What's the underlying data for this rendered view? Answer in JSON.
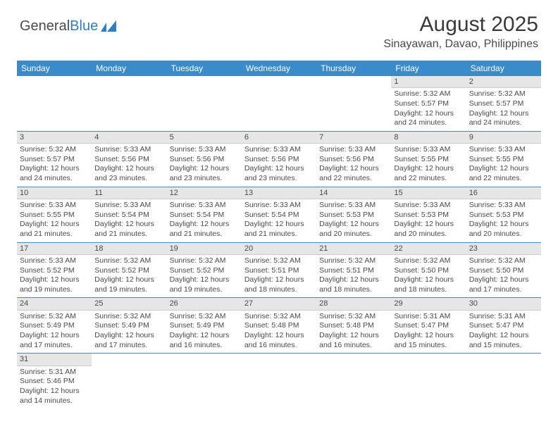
{
  "logo": {
    "text1": "General",
    "text2": "Blue"
  },
  "title": "August 2025",
  "subtitle": "Sinayawan, Davao, Philippines",
  "colors": {
    "header_bg": "#3a8bc9",
    "header_fg": "#ffffff",
    "daynum_bg": "#e6e6e6",
    "rule": "#3a8bc9"
  },
  "weekdays": [
    "Sunday",
    "Monday",
    "Tuesday",
    "Wednesday",
    "Thursday",
    "Friday",
    "Saturday"
  ],
  "weeks": [
    [
      null,
      null,
      null,
      null,
      null,
      {
        "n": "1",
        "sr": "Sunrise: 5:32 AM",
        "ss": "Sunset: 5:57 PM",
        "d1": "Daylight: 12 hours",
        "d2": "and 24 minutes."
      },
      {
        "n": "2",
        "sr": "Sunrise: 5:32 AM",
        "ss": "Sunset: 5:57 PM",
        "d1": "Daylight: 12 hours",
        "d2": "and 24 minutes."
      }
    ],
    [
      {
        "n": "3",
        "sr": "Sunrise: 5:32 AM",
        "ss": "Sunset: 5:57 PM",
        "d1": "Daylight: 12 hours",
        "d2": "and 24 minutes."
      },
      {
        "n": "4",
        "sr": "Sunrise: 5:33 AM",
        "ss": "Sunset: 5:56 PM",
        "d1": "Daylight: 12 hours",
        "d2": "and 23 minutes."
      },
      {
        "n": "5",
        "sr": "Sunrise: 5:33 AM",
        "ss": "Sunset: 5:56 PM",
        "d1": "Daylight: 12 hours",
        "d2": "and 23 minutes."
      },
      {
        "n": "6",
        "sr": "Sunrise: 5:33 AM",
        "ss": "Sunset: 5:56 PM",
        "d1": "Daylight: 12 hours",
        "d2": "and 23 minutes."
      },
      {
        "n": "7",
        "sr": "Sunrise: 5:33 AM",
        "ss": "Sunset: 5:56 PM",
        "d1": "Daylight: 12 hours",
        "d2": "and 22 minutes."
      },
      {
        "n": "8",
        "sr": "Sunrise: 5:33 AM",
        "ss": "Sunset: 5:55 PM",
        "d1": "Daylight: 12 hours",
        "d2": "and 22 minutes."
      },
      {
        "n": "9",
        "sr": "Sunrise: 5:33 AM",
        "ss": "Sunset: 5:55 PM",
        "d1": "Daylight: 12 hours",
        "d2": "and 22 minutes."
      }
    ],
    [
      {
        "n": "10",
        "sr": "Sunrise: 5:33 AM",
        "ss": "Sunset: 5:55 PM",
        "d1": "Daylight: 12 hours",
        "d2": "and 21 minutes."
      },
      {
        "n": "11",
        "sr": "Sunrise: 5:33 AM",
        "ss": "Sunset: 5:54 PM",
        "d1": "Daylight: 12 hours",
        "d2": "and 21 minutes."
      },
      {
        "n": "12",
        "sr": "Sunrise: 5:33 AM",
        "ss": "Sunset: 5:54 PM",
        "d1": "Daylight: 12 hours",
        "d2": "and 21 minutes."
      },
      {
        "n": "13",
        "sr": "Sunrise: 5:33 AM",
        "ss": "Sunset: 5:54 PM",
        "d1": "Daylight: 12 hours",
        "d2": "and 21 minutes."
      },
      {
        "n": "14",
        "sr": "Sunrise: 5:33 AM",
        "ss": "Sunset: 5:53 PM",
        "d1": "Daylight: 12 hours",
        "d2": "and 20 minutes."
      },
      {
        "n": "15",
        "sr": "Sunrise: 5:33 AM",
        "ss": "Sunset: 5:53 PM",
        "d1": "Daylight: 12 hours",
        "d2": "and 20 minutes."
      },
      {
        "n": "16",
        "sr": "Sunrise: 5:33 AM",
        "ss": "Sunset: 5:53 PM",
        "d1": "Daylight: 12 hours",
        "d2": "and 20 minutes."
      }
    ],
    [
      {
        "n": "17",
        "sr": "Sunrise: 5:33 AM",
        "ss": "Sunset: 5:52 PM",
        "d1": "Daylight: 12 hours",
        "d2": "and 19 minutes."
      },
      {
        "n": "18",
        "sr": "Sunrise: 5:32 AM",
        "ss": "Sunset: 5:52 PM",
        "d1": "Daylight: 12 hours",
        "d2": "and 19 minutes."
      },
      {
        "n": "19",
        "sr": "Sunrise: 5:32 AM",
        "ss": "Sunset: 5:52 PM",
        "d1": "Daylight: 12 hours",
        "d2": "and 19 minutes."
      },
      {
        "n": "20",
        "sr": "Sunrise: 5:32 AM",
        "ss": "Sunset: 5:51 PM",
        "d1": "Daylight: 12 hours",
        "d2": "and 18 minutes."
      },
      {
        "n": "21",
        "sr": "Sunrise: 5:32 AM",
        "ss": "Sunset: 5:51 PM",
        "d1": "Daylight: 12 hours",
        "d2": "and 18 minutes."
      },
      {
        "n": "22",
        "sr": "Sunrise: 5:32 AM",
        "ss": "Sunset: 5:50 PM",
        "d1": "Daylight: 12 hours",
        "d2": "and 18 minutes."
      },
      {
        "n": "23",
        "sr": "Sunrise: 5:32 AM",
        "ss": "Sunset: 5:50 PM",
        "d1": "Daylight: 12 hours",
        "d2": "and 17 minutes."
      }
    ],
    [
      {
        "n": "24",
        "sr": "Sunrise: 5:32 AM",
        "ss": "Sunset: 5:49 PM",
        "d1": "Daylight: 12 hours",
        "d2": "and 17 minutes."
      },
      {
        "n": "25",
        "sr": "Sunrise: 5:32 AM",
        "ss": "Sunset: 5:49 PM",
        "d1": "Daylight: 12 hours",
        "d2": "and 17 minutes."
      },
      {
        "n": "26",
        "sr": "Sunrise: 5:32 AM",
        "ss": "Sunset: 5:49 PM",
        "d1": "Daylight: 12 hours",
        "d2": "and 16 minutes."
      },
      {
        "n": "27",
        "sr": "Sunrise: 5:32 AM",
        "ss": "Sunset: 5:48 PM",
        "d1": "Daylight: 12 hours",
        "d2": "and 16 minutes."
      },
      {
        "n": "28",
        "sr": "Sunrise: 5:32 AM",
        "ss": "Sunset: 5:48 PM",
        "d1": "Daylight: 12 hours",
        "d2": "and 16 minutes."
      },
      {
        "n": "29",
        "sr": "Sunrise: 5:31 AM",
        "ss": "Sunset: 5:47 PM",
        "d1": "Daylight: 12 hours",
        "d2": "and 15 minutes."
      },
      {
        "n": "30",
        "sr": "Sunrise: 5:31 AM",
        "ss": "Sunset: 5:47 PM",
        "d1": "Daylight: 12 hours",
        "d2": "and 15 minutes."
      }
    ],
    [
      {
        "n": "31",
        "sr": "Sunrise: 5:31 AM",
        "ss": "Sunset: 5:46 PM",
        "d1": "Daylight: 12 hours",
        "d2": "and 14 minutes."
      },
      null,
      null,
      null,
      null,
      null,
      null
    ]
  ]
}
